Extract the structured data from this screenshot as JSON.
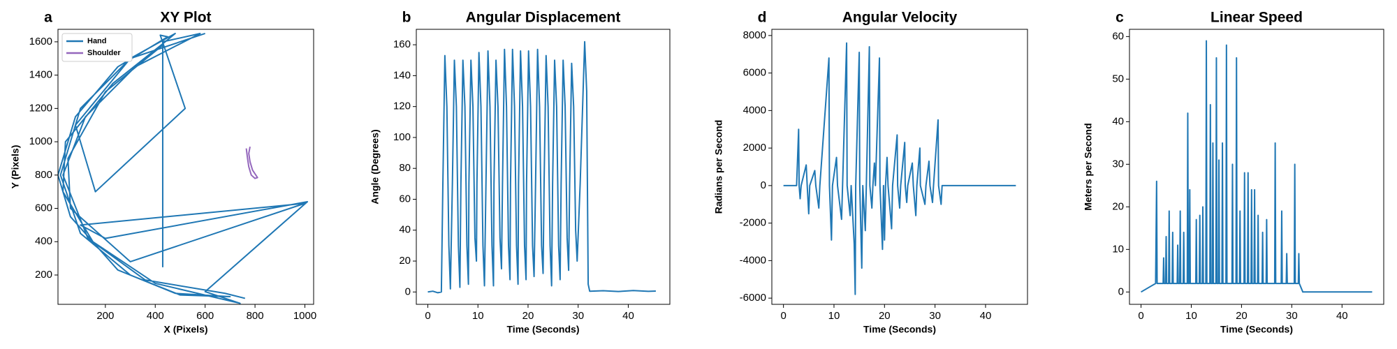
{
  "chart_data": [
    {
      "type": "line",
      "panel_label": "a",
      "title": "XY Plot",
      "xlabel": "X (Pixels)",
      "ylabel": "Y (Pixels)",
      "xlim": [
        10,
        1035
      ],
      "ylim": [
        24,
        1675
      ],
      "xticks": [
        200,
        400,
        600,
        800,
        1000
      ],
      "yticks": [
        200,
        400,
        600,
        800,
        1000,
        1200,
        1400,
        1600
      ],
      "legend": "upper left",
      "series": [
        {
          "name": "Hand",
          "color": "#1f77b4",
          "x": [
            600,
            300,
            100,
            20,
            100,
            300,
            500,
            700,
            480,
            250,
            60,
            10,
            80,
            250,
            450,
            420,
            520,
            160,
            80,
            300,
            480,
            440,
            230,
            40,
            30,
            150,
            400,
            740,
            600,
            1010,
            200,
            100,
            1000,
            300,
            60,
            50,
            200,
            430,
            430,
            430,
            580,
            320,
            120,
            30,
            130,
            360,
            680,
            760
          ],
          "values": [
            1650,
            1500,
            1200,
            800,
            450,
            200,
            80,
            70,
            90,
            230,
            550,
            800,
            1150,
            1450,
            1630,
            1640,
            1200,
            700,
            1100,
            1500,
            1650,
            1600,
            1350,
            1000,
            700,
            400,
            150,
            30,
            100,
            640,
            420,
            500,
            630,
            280,
            600,
            900,
            1300,
            1580,
            250,
            1600,
            1650,
            1450,
            1150,
            800,
            420,
            170,
            90,
            60
          ]
        },
        {
          "name": "Shoulder",
          "color": "#9467bd",
          "x": [
            765,
            770,
            775,
            785,
            800,
            810,
            790,
            780,
            775,
            780
          ],
          "values": [
            960,
            900,
            850,
            800,
            780,
            785,
            830,
            880,
            930,
            970
          ]
        }
      ]
    },
    {
      "type": "line",
      "panel_label": "b",
      "title": "Angular Displacement",
      "xlabel": "Time (Seconds)",
      "ylabel": "Angle (Degrees)",
      "xlim": [
        -2.3,
        48.3
      ],
      "ylim": [
        -8,
        170
      ],
      "xticks": [
        0,
        10,
        20,
        30,
        40
      ],
      "yticks": [
        0,
        20,
        40,
        60,
        80,
        100,
        120,
        140,
        160
      ],
      "x": [
        0,
        1,
        2,
        2.7,
        3.0,
        3.4,
        3.8,
        4.2,
        4.5,
        4.9,
        5.3,
        5.7,
        6.1,
        6.4,
        6.6,
        7.0,
        7.4,
        7.8,
        8.1,
        8.2,
        8.6,
        9.0,
        9.4,
        9.7,
        9.8,
        10.2,
        10.6,
        11.0,
        11.3,
        11.6,
        12.0,
        12.4,
        12.8,
        13.1,
        13.2,
        13.6,
        14.0,
        14.4,
        14.7,
        14.9,
        15.3,
        15.7,
        16.1,
        16.4,
        16.5,
        16.9,
        17.3,
        17.7,
        18.0,
        18.1,
        18.5,
        18.9,
        19.3,
        19.6,
        19.7,
        20.1,
        20.5,
        20.9,
        21.2,
        21.5,
        21.9,
        22.3,
        22.7,
        23.0,
        23.2,
        23.6,
        24.0,
        24.4,
        24.7,
        24.9,
        25.3,
        25.7,
        26.1,
        26.4,
        26.6,
        27.0,
        27.4,
        27.8,
        28.1,
        28.3,
        28.7,
        29.1,
        29.5,
        29.8,
        30.4,
        31.3,
        31.7,
        32.0,
        32.3,
        35,
        38,
        41,
        44,
        45.5
      ],
      "series": [
        {
          "color": "#1f77b4",
          "values": [
            0,
            0.5,
            -0.5,
            0,
            70,
            153,
            120,
            30,
            2,
            70,
            150,
            120,
            30,
            3,
            70,
            150,
            120,
            30,
            5,
            70,
            150,
            120,
            35,
            20,
            70,
            155,
            120,
            30,
            4,
            70,
            156,
            120,
            30,
            4,
            70,
            150,
            120,
            35,
            15,
            70,
            157,
            120,
            30,
            8,
            70,
            157,
            120,
            30,
            5,
            70,
            156,
            120,
            30,
            8,
            70,
            156,
            120,
            30,
            10,
            70,
            157,
            120,
            30,
            12,
            70,
            153,
            120,
            30,
            4,
            70,
            150,
            120,
            30,
            8,
            70,
            150,
            120,
            35,
            14,
            70,
            148,
            120,
            40,
            20,
            70,
            162,
            130,
            5,
            0.5,
            0.8,
            0.3,
            0.9,
            0.4,
            0.6
          ]
        }
      ]
    },
    {
      "type": "line",
      "panel_label": "d",
      "title": "Angular Velocity",
      "xlabel": "Time (Seconds)",
      "ylabel": "Radians per Second",
      "xlim": [
        -2.3,
        48.3
      ],
      "ylim": [
        -6330,
        8330
      ],
      "xticks": [
        0,
        10,
        20,
        30,
        40
      ],
      "yticks": [
        -6000,
        -4000,
        -2000,
        0,
        2000,
        4000,
        6000,
        8000
      ],
      "x": [
        0,
        2.6,
        3.0,
        3.1,
        3.3,
        3.5,
        4.5,
        4.7,
        5.0,
        5.2,
        6.2,
        6.4,
        7.0,
        7.2,
        9.0,
        9.1,
        9.5,
        9.7,
        10.5,
        10.7,
        11.5,
        11.7,
        12.5,
        12.6,
        13.2,
        13.4,
        14.0,
        14.2,
        14.3,
        15.0,
        15.1,
        15.5,
        15.7,
        16.2,
        16.4,
        17.0,
        17.1,
        17.5,
        17.7,
        18.0,
        18.2,
        19.0,
        19.1,
        19.6,
        19.8,
        20.0,
        20.2,
        20.5,
        20.7,
        21.4,
        21.6,
        22.5,
        22.6,
        23.0,
        23.2,
        24.0,
        24.1,
        24.4,
        24.6,
        25.5,
        25.7,
        26.2,
        26.4,
        27.0,
        27.1,
        28.0,
        28.2,
        28.8,
        29.0,
        29.5,
        29.7,
        30.6,
        30.7,
        31.2,
        31.4,
        32,
        46
      ],
      "series": [
        {
          "color": "#1f77b4",
          "values": [
            0,
            0,
            3000,
            0,
            -700,
            0,
            1100,
            0,
            -1500,
            0,
            800,
            0,
            -1200,
            0,
            6800,
            0,
            -2900,
            0,
            1500,
            0,
            -1800,
            0,
            7600,
            0,
            -1600,
            0,
            -3100,
            -5800,
            0,
            7100,
            0,
            -4400,
            0,
            -2400,
            0,
            7400,
            0,
            -1200,
            0,
            1200,
            0,
            6800,
            0,
            -3400,
            0,
            -2900,
            0,
            1500,
            0,
            -2300,
            0,
            2700,
            0,
            -1200,
            0,
            2300,
            0,
            -900,
            0,
            1200,
            0,
            -1600,
            0,
            2000,
            0,
            -1000,
            0,
            1300,
            0,
            -900,
            0,
            3500,
            0,
            -1000,
            0,
            0,
            0
          ]
        }
      ]
    },
    {
      "type": "line",
      "panel_label": "c",
      "title": "Linear Speed",
      "xlabel": "Time (Seconds)",
      "ylabel": "Meters per Second",
      "xlim": [
        -2.3,
        48.3
      ],
      "ylim": [
        -2.9,
        61.7
      ],
      "xticks": [
        0,
        10,
        20,
        30,
        40
      ],
      "yticks": [
        0,
        10,
        20,
        30,
        40,
        50,
        60
      ],
      "x": [
        0,
        2.9,
        3.1,
        3.2,
        4.4,
        4.5,
        4.6,
        4.9,
        5.0,
        5.1,
        5.5,
        5.6,
        5.7,
        6.2,
        6.3,
        6.4,
        7.2,
        7.3,
        7.4,
        7.7,
        7.8,
        7.9,
        8.4,
        8.5,
        8.6,
        9.2,
        9.3,
        9.4,
        9.6,
        9.7,
        9.8,
        10.9,
        11,
        11.1,
        11.6,
        11.7,
        11.8,
        12.2,
        12.3,
        12.4,
        12.9,
        13,
        13.1,
        13.7,
        13.8,
        13.9,
        14.2,
        14.3,
        14.4,
        14.9,
        15,
        15.1,
        15.4,
        15.5,
        15.6,
        16.1,
        16.2,
        16.3,
        16.9,
        17,
        17.1,
        18.1,
        18.2,
        18.3,
        18.9,
        19,
        19.1,
        19.6,
        19.7,
        19.8,
        20.5,
        20.6,
        20.7,
        21.2,
        21.3,
        21.4,
        21.9,
        22,
        22.1,
        22.5,
        22.6,
        22.7,
        23.2,
        23.3,
        23.4,
        24.1,
        24.2,
        24.3,
        24.9,
        25,
        25.1,
        26.6,
        26.7,
        26.8,
        27.9,
        28,
        28.1,
        28.9,
        29,
        29.1,
        30.5,
        30.6,
        30.7,
        31.3,
        31.4,
        31.5,
        32.2,
        46
      ],
      "series": [
        {
          "color": "#1f77b4",
          "values": [
            0,
            2,
            26,
            2,
            2,
            8,
            2,
            2,
            13,
            2,
            2,
            19,
            2,
            2,
            14,
            2,
            2,
            11,
            2,
            2,
            19,
            2,
            2,
            14,
            2,
            2,
            42,
            2,
            2,
            24,
            2,
            2,
            17,
            2,
            2,
            18,
            2,
            2,
            20,
            2,
            2,
            59,
            2,
            2,
            44,
            2,
            2,
            35,
            2,
            2,
            55,
            2,
            2,
            31,
            2,
            2,
            35,
            2,
            2,
            58,
            2,
            2,
            30,
            2,
            2,
            55,
            2,
            2,
            19,
            2,
            2,
            28,
            2,
            2,
            28,
            2,
            2,
            24,
            2,
            2,
            24,
            2,
            2,
            18,
            2,
            2,
            14,
            2,
            2,
            17,
            2,
            2,
            35,
            2,
            2,
            19,
            2,
            2,
            9,
            2,
            2,
            30,
            2,
            2,
            9,
            2,
            0,
            0
          ]
        }
      ]
    }
  ]
}
